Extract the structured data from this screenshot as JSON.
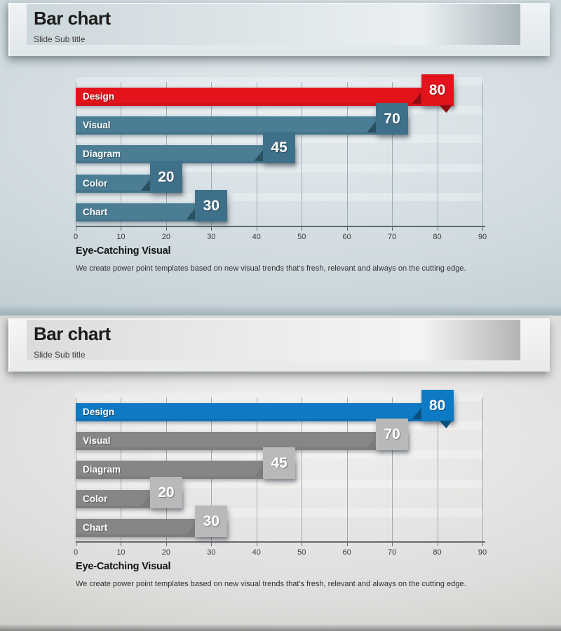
{
  "slides": [
    {
      "title": "Bar chart",
      "subtitle": "Slide Sub title",
      "caption": {
        "title": "Eye-Catching Visual",
        "body": "We create power point templates based on new visual trends that's fresh, relevant and always on the cutting edge."
      },
      "theme": {
        "bar_color": "#4b7e95",
        "tag_color": "#3f7089",
        "fold_color": "#29505f",
        "accent_color": "#e2131b",
        "accent_fold_color": "#8f0d12",
        "grid_color": "#9cadb5",
        "axis_color": "#5c6b73",
        "tick_color": "#3a3a3a"
      },
      "chart_data": {
        "type": "bar",
        "orientation": "horizontal",
        "categories": [
          "Design",
          "Visual",
          "Diagram",
          "Color",
          "Chart"
        ],
        "values": [
          80,
          70,
          45,
          20,
          30
        ],
        "highlight_category": "Design",
        "xlim": [
          0,
          90
        ],
        "xticks": [
          0,
          10,
          20,
          30,
          40,
          50,
          60,
          70,
          80,
          90
        ],
        "grid": true,
        "legend": "none",
        "value_labels": true
      }
    },
    {
      "title": "Bar chart",
      "subtitle": "Slide Sub title",
      "caption": {
        "title": "Eye-Catching Visual",
        "body": "We create power point templates based on new visual trends that's fresh, relevant and always on the cutting edge."
      },
      "theme": {
        "bar_color": "#868686",
        "tag_color": "#b9b9b9",
        "fold_color": "#7a7a7a",
        "accent_color": "#0e7ac3",
        "accent_fold_color": "#07507f",
        "grid_color": "#a7a7a7",
        "axis_color": "#6b6b6b",
        "tick_color": "#3a3a3a"
      },
      "chart_data": {
        "type": "bar",
        "orientation": "horizontal",
        "categories": [
          "Design",
          "Visual",
          "Diagram",
          "Color",
          "Chart"
        ],
        "values": [
          80,
          70,
          45,
          20,
          30
        ],
        "highlight_category": "Design",
        "xlim": [
          0,
          90
        ],
        "xticks": [
          0,
          10,
          20,
          30,
          40,
          50,
          60,
          70,
          80,
          90
        ],
        "grid": true,
        "legend": "none",
        "value_labels": true
      }
    }
  ]
}
